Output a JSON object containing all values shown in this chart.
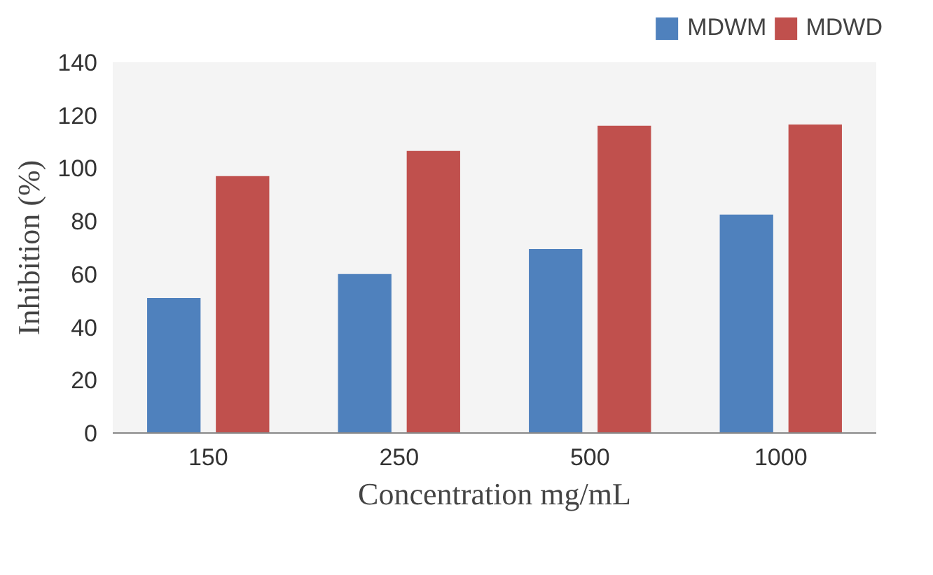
{
  "chart_data": {
    "type": "bar",
    "xlabel": "Concentration mg/mL",
    "ylabel": "Inhibition (%)",
    "categories": [
      "150",
      "250",
      "500",
      "1000"
    ],
    "series": [
      {
        "name": "MDWM",
        "color": "#4f81bd",
        "values": [
          51,
          60,
          69.5,
          82.5
        ]
      },
      {
        "name": "MDWD",
        "color": "#c0504d",
        "values": [
          97,
          106.5,
          116,
          116.5
        ]
      }
    ],
    "ylim": [
      0,
      140
    ],
    "yticks": [
      0,
      20,
      40,
      60,
      80,
      100,
      120,
      140
    ],
    "grid": false,
    "legend": "top right"
  }
}
